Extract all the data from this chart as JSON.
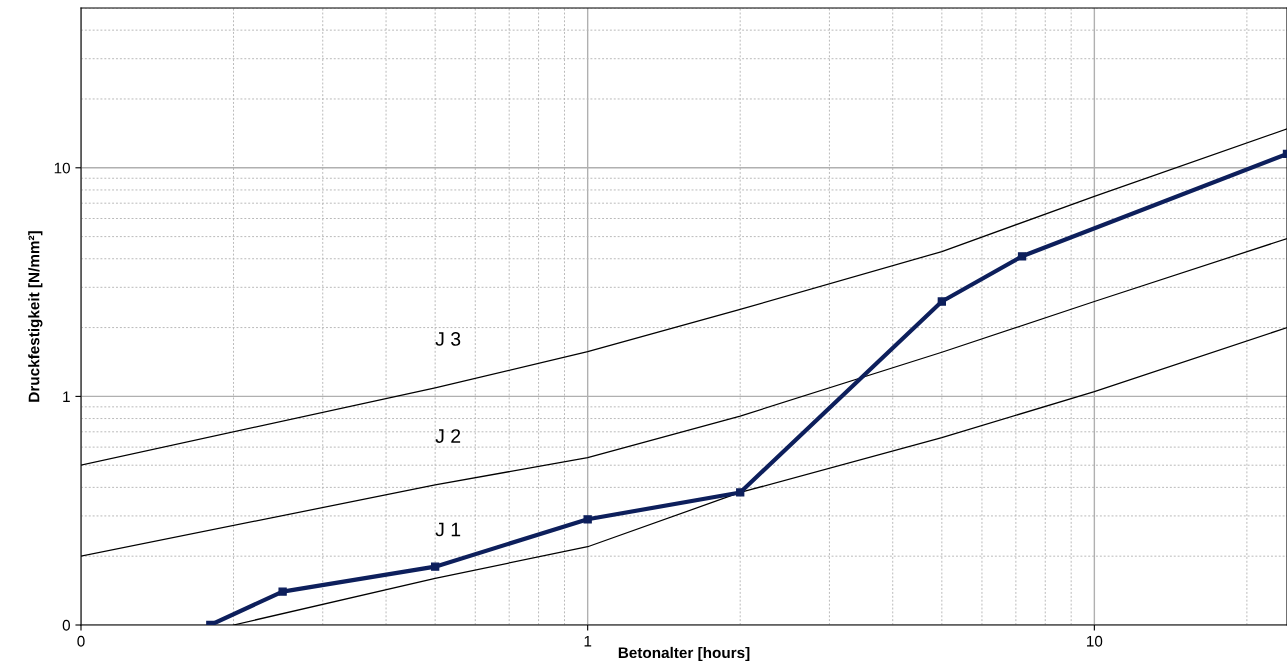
{
  "chart_data": {
    "type": "line",
    "xlabel": "Betonalter [hours]",
    "ylabel": "Druckfestigkeit [N/mm²]",
    "log": "xy",
    "xlim": [
      0.1,
      24
    ],
    "ylim": [
      0.1,
      50
    ],
    "xticks": [
      {
        "value": 0.1,
        "label": "0"
      },
      1,
      10
    ],
    "yticks": [
      {
        "value": 0.1,
        "label": "0"
      },
      1,
      10
    ],
    "grid": true,
    "legend": false,
    "series": [
      {
        "name": "J 3",
        "color": "#000000",
        "marker": "none",
        "x": [
          0.1,
          0.5,
          1,
          2,
          5,
          10,
          24
        ],
        "values": [
          0.5,
          1.09,
          1.57,
          2.4,
          4.3,
          7.5,
          14.8
        ]
      },
      {
        "name": "J 2",
        "color": "#000000",
        "marker": "none",
        "x": [
          0.1,
          0.5,
          1,
          2,
          5,
          10,
          24
        ],
        "values": [
          0.2,
          0.41,
          0.54,
          0.82,
          1.56,
          2.6,
          4.9
        ]
      },
      {
        "name": "J 1",
        "color": "#000000",
        "marker": "none",
        "x": [
          0.2,
          0.5,
          1,
          2,
          5,
          10,
          24
        ],
        "values": [
          0.1,
          0.16,
          0.22,
          0.38,
          0.66,
          1.05,
          2.0
        ]
      },
      {
        "color": "#0d1f5c",
        "marker": "square",
        "x": [
          0.18,
          0.25,
          0.5,
          1,
          2,
          5,
          7.2,
          24
        ],
        "values": [
          0.1,
          0.14,
          0.18,
          0.29,
          0.38,
          2.6,
          4.1,
          11.5
        ]
      }
    ]
  }
}
